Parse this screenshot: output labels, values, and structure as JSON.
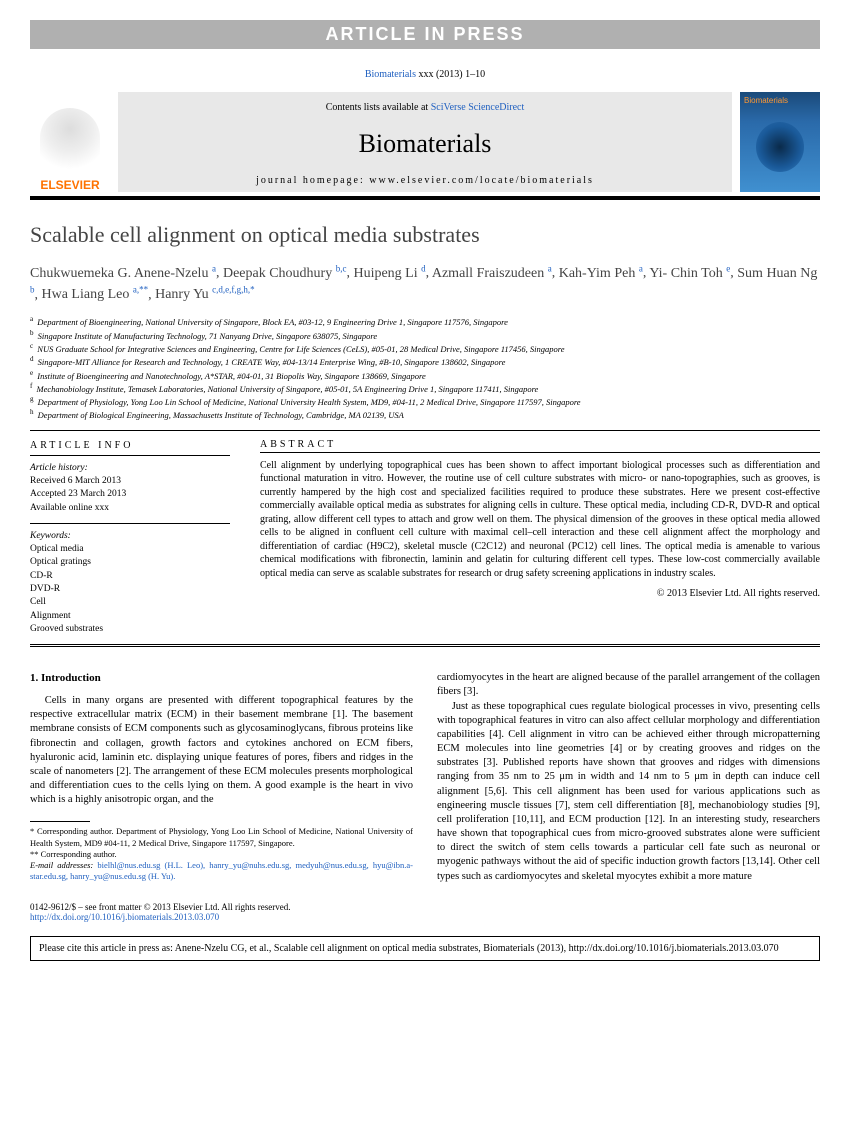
{
  "banner": "ARTICLE IN PRESS",
  "topCitation": {
    "journal": "Biomaterials",
    "rest": " xxx (2013) 1–10"
  },
  "masthead": {
    "publisher": "ELSEVIER",
    "contentsPre": "Contents lists available at ",
    "contentsLink": "SciVerse ScienceDirect",
    "journal": "Biomaterials",
    "homepagePre": "journal homepage: ",
    "homepageUrl": "www.elsevier.com/locate/biomaterials",
    "coverLabel": "Biomaterials"
  },
  "title": "Scalable cell alignment on optical media substrates",
  "authorsHtmlParts": [
    {
      "name": "Chukwuemeka G. Anene-Nzelu",
      "sup": "a"
    },
    {
      "name": "Deepak Choudhury",
      "sup": "b,c"
    },
    {
      "name": "Huipeng Li",
      "sup": "d"
    },
    {
      "name": "Azmall Fraiszudeen",
      "sup": "a"
    },
    {
      "name": "Kah-Yim Peh",
      "sup": "a"
    },
    {
      "name": "Yi- Chin Toh",
      "sup": "e"
    },
    {
      "name": "Sum Huan Ng",
      "sup": "b"
    },
    {
      "name": "Hwa Liang Leo",
      "sup": "a,**"
    },
    {
      "name": "Hanry Yu",
      "sup": "c,d,e,f,g,h,*"
    }
  ],
  "affiliations": [
    {
      "s": "a",
      "t": "Department of Bioengineering, National University of Singapore, Block EA, #03-12, 9 Engineering Drive 1, Singapore 117576, Singapore"
    },
    {
      "s": "b",
      "t": "Singapore Institute of Manufacturing Technology, 71 Nanyang Drive, Singapore 638075, Singapore"
    },
    {
      "s": "c",
      "t": "NUS Graduate School for Integrative Sciences and Engineering, Centre for Life Sciences (CeLS), #05-01, 28 Medical Drive, Singapore 117456, Singapore"
    },
    {
      "s": "d",
      "t": "Singapore-MIT Alliance for Research and Technology, 1 CREATE Way, #04-13/14 Enterprise Wing, #B-10, Singapore 138602, Singapore"
    },
    {
      "s": "e",
      "t": "Institute of Bioengineering and Nanotechnology, A*STAR, #04-01, 31 Biopolis Way, Singapore 138669, Singapore"
    },
    {
      "s": "f",
      "t": "Mechanobiology Institute, Temasek Laboratories, National University of Singapore, #05-01, 5A Engineering Drive 1, Singapore 117411, Singapore"
    },
    {
      "s": "g",
      "t": "Department of Physiology, Yong Loo Lin School of Medicine, National University Health System, MD9, #04-11, 2 Medical Drive, Singapore 117597, Singapore"
    },
    {
      "s": "h",
      "t": "Department of Biological Engineering, Massachusetts Institute of Technology, Cambridge, MA 02139, USA"
    }
  ],
  "info": {
    "head": "ARTICLE INFO",
    "historyLabel": "Article history:",
    "received": "Received 6 March 2013",
    "accepted": "Accepted 23 March 2013",
    "online": "Available online xxx",
    "keywordsLabel": "Keywords:",
    "keywords": [
      "Optical media",
      "Optical gratings",
      "CD-R",
      "DVD-R",
      "Cell",
      "Alignment",
      "Grooved substrates"
    ]
  },
  "abstract": {
    "head": "ABSTRACT",
    "text": "Cell alignment by underlying topographical cues has been shown to affect important biological processes such as differentiation and functional maturation in vitro. However, the routine use of cell culture substrates with micro- or nano-topographies, such as grooves, is currently hampered by the high cost and specialized facilities required to produce these substrates. Here we present cost-effective commercially available optical media as substrates for aligning cells in culture. These optical media, including CD-R, DVD-R and optical grating, allow different cell types to attach and grow well on them. The physical dimension of the grooves in these optical media allowed cells to be aligned in confluent cell culture with maximal cell–cell interaction and these cell alignment affect the morphology and differentiation of cardiac (H9C2), skeletal muscle (C2C12) and neuronal (PC12) cell lines. The optical media is amenable to various chemical modifications with fibronectin, laminin and gelatin for culturing different cell types. These low-cost commercially available optical media can serve as scalable substrates for research or drug safety screening applications in industry scales.",
    "copyright": "© 2013 Elsevier Ltd. All rights reserved."
  },
  "intro": {
    "head": "1. Introduction",
    "p1": "Cells in many organs are presented with different topographical features by the respective extracellular matrix (ECM) in their basement membrane [1]. The basement membrane consists of ECM components such as glycosaminoglycans, fibrous proteins like fibronectin and collagen, growth factors and cytokines anchored on ECM fibers, hyaluronic acid, laminin etc. displaying unique features of pores, fibers and ridges in the scale of nanometers [2]. The arrangement of these ECM molecules presents morphological and differentiation cues to the cells lying on them. A good example is the heart in vivo which is a highly anisotropic organ, and the",
    "p2": "cardiomyocytes in the heart are aligned because of the parallel arrangement of the collagen fibers [3].",
    "p3": "Just as these topographical cues regulate biological processes in vivo, presenting cells with topographical features in vitro can also affect cellular morphology and differentiation capabilities [4]. Cell alignment in vitro can be achieved either through micropatterning ECM molecules into line geometries [4] or by creating grooves and ridges on the substrates [3]. Published reports have shown that grooves and ridges with dimensions ranging from 35 nm to 25 μm in width and 14 nm to 5 μm in depth can induce cell alignment [5,6]. This cell alignment has been used for various applications such as engineering muscle tissues [7], stem cell differentiation [8], mechanobiology studies [9], cell proliferation [10,11], and ECM production [12]. In an interesting study, researchers have shown that topographical cues from micro-grooved substrates alone were sufficient to direct the switch of stem cells towards a particular cell fate such as neuronal or myogenic pathways without the aid of specific induction growth factors [13,14]. Other cell types such as cardiomyocytes and skeletal myocytes exhibit a more mature"
  },
  "footnotes": {
    "corr1label": "* ",
    "corr1": "Corresponding author. Department of Physiology, Yong Loo Lin School of Medicine, National University of Health System, MD9 #04-11, 2 Medical Drive, Singapore 117597, Singapore.",
    "corr2label": "** ",
    "corr2": "Corresponding author.",
    "emailLabel": "E-mail addresses: ",
    "emails": "bielhl@nus.edu.sg (H.L. Leo), hanry_yu@nuhs.edu.sg, medyuh@nus.edu.sg, hyu@ibn.a-star.edu.sg, hanry_yu@nus.edu.sg (H. Yu)."
  },
  "footer": {
    "line": "0142-9612/$ – see front matter © 2013 Elsevier Ltd. All rights reserved.",
    "doi": "http://dx.doi.org/10.1016/j.biomaterials.2013.03.070"
  },
  "citeBox": "Please cite this article in press as: Anene-Nzelu CG, et al., Scalable cell alignment on optical media substrates, Biomaterials (2013), http://dx.doi.org/10.1016/j.biomaterials.2013.03.070"
}
